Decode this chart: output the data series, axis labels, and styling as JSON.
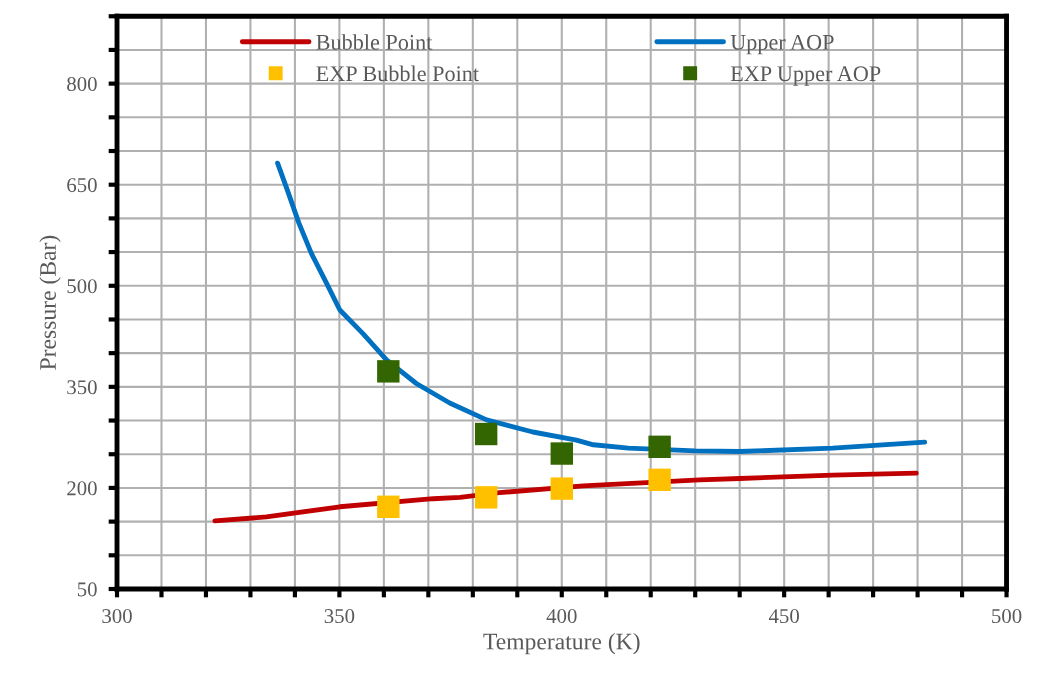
{
  "chart_data": {
    "type": "line",
    "xlabel": "Temperature (K)",
    "ylabel": "Pressure (Bar)",
    "xlim": [
      300,
      500
    ],
    "ylim": [
      50,
      900
    ],
    "xticks": [
      300,
      {
        "value": 310,
        "label": null
      },
      {
        "value": 320,
        "label": null
      },
      {
        "value": 330,
        "label": null
      },
      {
        "value": 340,
        "label": null
      },
      350,
      {
        "value": 360,
        "label": null
      },
      {
        "value": 370,
        "label": null
      },
      {
        "value": 380,
        "label": null
      },
      {
        "value": 390,
        "label": null
      },
      400,
      {
        "value": 410,
        "label": null
      },
      {
        "value": 420,
        "label": null
      },
      {
        "value": 430,
        "label": null
      },
      {
        "value": 440,
        "label": null
      },
      450,
      {
        "value": 460,
        "label": null
      },
      {
        "value": 470,
        "label": null
      },
      {
        "value": 480,
        "label": null
      },
      {
        "value": 490,
        "label": null
      },
      500
    ],
    "yticks": [
      50,
      {
        "value": 100,
        "label": null
      },
      {
        "value": 150,
        "label": null
      },
      200,
      {
        "value": 250,
        "label": null
      },
      {
        "value": 300,
        "label": null
      },
      350,
      {
        "value": 400,
        "label": null
      },
      {
        "value": 450,
        "label": null
      },
      500,
      {
        "value": 550,
        "label": null
      },
      {
        "value": 600,
        "label": null
      },
      650,
      {
        "value": 700,
        "label": null
      },
      {
        "value": 750,
        "label": null
      },
      800,
      {
        "value": 850,
        "label": null
      },
      {
        "value": 900,
        "label": null
      }
    ],
    "grid": true,
    "legend": "top",
    "line_style": "solid",
    "series": [
      {
        "name": "Bubble Point",
        "color": "#c00000",
        "x": [
          322,
          333.6,
          350.1,
          371.1,
          377.1,
          386,
          404.8,
          431,
          440,
          460.9,
          479.7
        ],
        "values": [
          151,
          157,
          172,
          184,
          186,
          193,
          203,
          212,
          214,
          219,
          222
        ]
      },
      {
        "name": "EXP Bubble Point",
        "type": "scatter",
        "marker": "square",
        "color": "#ffc000",
        "x": [
          361,
          383,
          400,
          422
        ],
        "values": [
          172,
          186,
          199,
          212
        ]
      },
      {
        "name": "Upper AOP",
        "color": "#0070c0",
        "x": [
          336.1,
          338.3,
          340.9,
          343.7,
          347.1,
          350.1,
          355.3,
          360.6,
          367.3,
          374.8,
          383.1,
          393.5,
          403.3,
          407.1,
          415,
          430,
          440,
          460.9,
          481.6
        ],
        "values": [
          682,
          642,
          593,
          548,
          504,
          464,
          429,
          390,
          355,
          326,
          301,
          283,
          271,
          264,
          259,
          255,
          254,
          259,
          268
        ]
      },
      {
        "name": "EXP Upper AOP",
        "type": "scatter",
        "marker": "square",
        "color": "#336600",
        "x": [
          361,
          383,
          400,
          422
        ],
        "values": [
          373,
          280,
          251,
          261
        ]
      }
    ]
  }
}
